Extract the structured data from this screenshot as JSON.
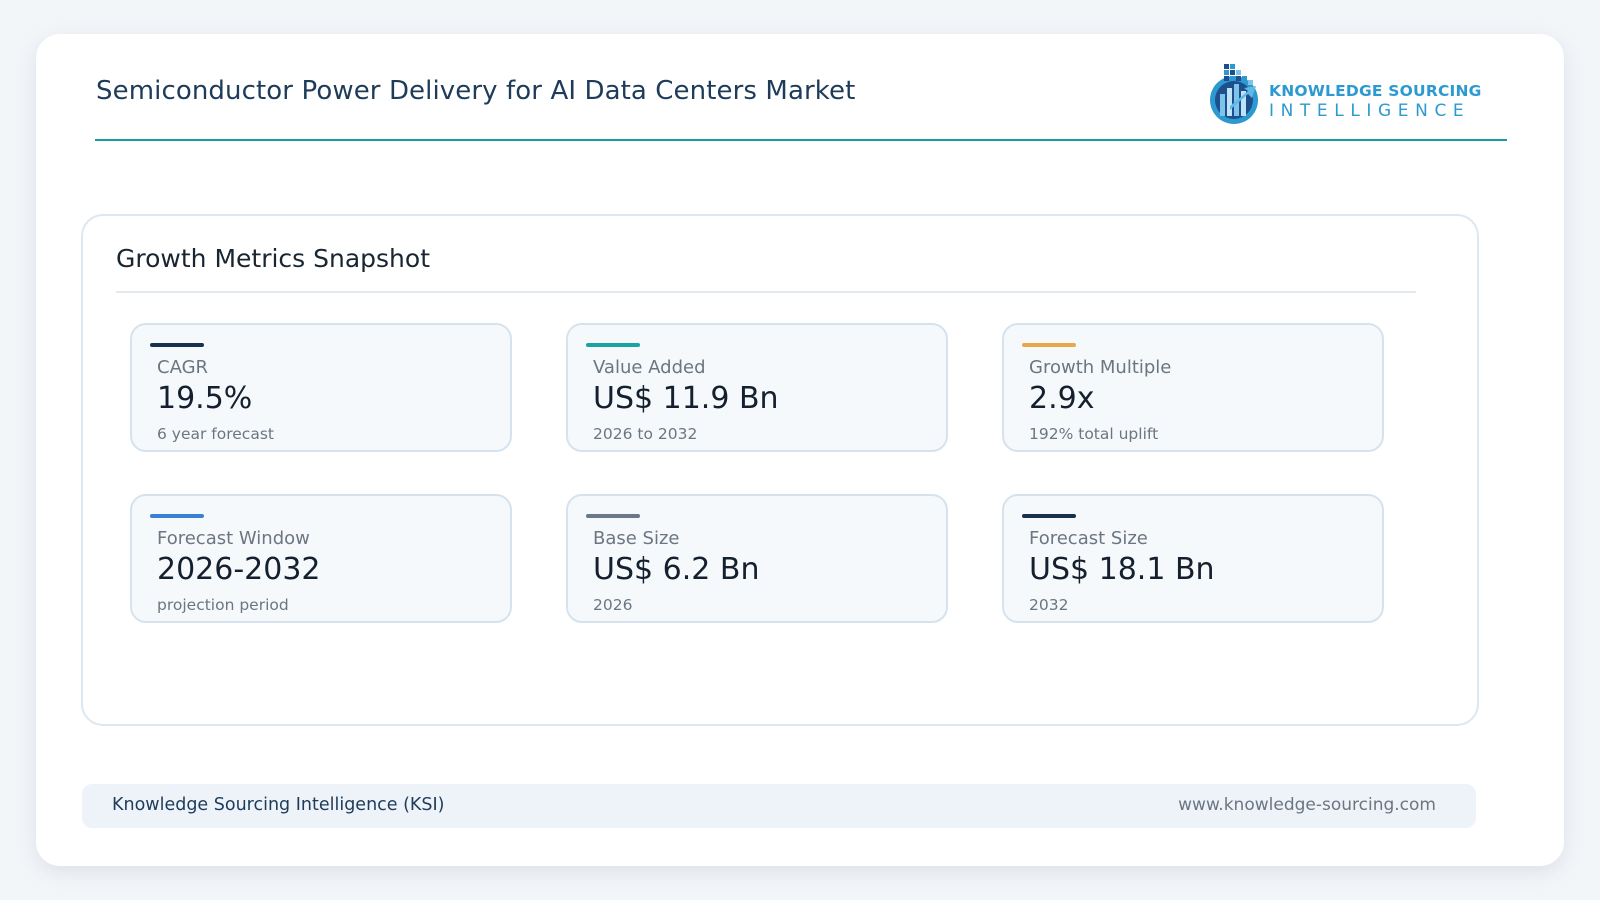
{
  "header": {
    "title": "Semiconductor Power Delivery for AI Data Centers Market"
  },
  "logo": {
    "line1": "KNOWLEDGE SOURCING",
    "line2": "INTELLIGENCE",
    "color": "#2c9ad1",
    "mark_colors": [
      "#1c4f8c",
      "#2c9ad1",
      "#7ec4ea"
    ]
  },
  "accent_rule_color": "#1d9aa0",
  "panel": {
    "title": "Growth Metrics Snapshot"
  },
  "metrics": [
    {
      "label": "CAGR",
      "value": "19.5%",
      "note": "6 year forecast",
      "accent": "#16324f"
    },
    {
      "label": "Value Added",
      "value": "US$ 11.9 Bn",
      "note": "2026 to 2032",
      "accent": "#1aa3a3"
    },
    {
      "label": "Growth Multiple",
      "value": "2.9x",
      "note": "192% total uplift",
      "accent": "#e8a84a"
    },
    {
      "label": "Forecast Window",
      "value": "2026-2032",
      "note": "projection period",
      "accent": "#3a7fd6"
    },
    {
      "label": "Base Size",
      "value": "US$ 6.2 Bn",
      "note": "2026",
      "accent": "#6b7888"
    },
    {
      "label": "Forecast Size",
      "value": "US$ 18.1 Bn",
      "note": "2032",
      "accent": "#16324f"
    }
  ],
  "footer": {
    "left": "Knowledge Sourcing Intelligence (KSI)",
    "right": "www.knowledge-sourcing.com"
  }
}
